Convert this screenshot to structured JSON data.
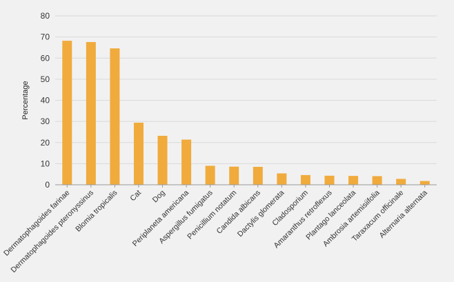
{
  "chart_data": {
    "type": "bar",
    "title": "",
    "xlabel": "",
    "ylabel": "Percentage",
    "ylim": [
      0,
      80
    ],
    "yticks": [
      0,
      10,
      20,
      30,
      40,
      50,
      60,
      70,
      80
    ],
    "grid": true,
    "legend": "none",
    "bar_color": "#f0ab3c",
    "categories": [
      "Dermatophagoides farinae",
      "Dermatophagoides pteronyssinus",
      "Blomia tropicalis",
      "Cat",
      "Dog",
      "Periplaneta americana",
      "Aspergillus fumigatus",
      "Penicillium notatum",
      "Candida albicans",
      "Dactylis glomerata",
      "Cladosporium",
      "Amaranthus retroflexus",
      "Plantago lanceolata",
      "Ambrosia artemisiifolia",
      "Taraxacum officinale",
      "Alternaria alternata"
    ],
    "values": [
      68.2,
      67.6,
      64.6,
      29.4,
      23.2,
      21.4,
      9.0,
      8.6,
      8.5,
      5.4,
      4.6,
      4.3,
      4.2,
      4.1,
      2.8,
      1.8
    ]
  }
}
